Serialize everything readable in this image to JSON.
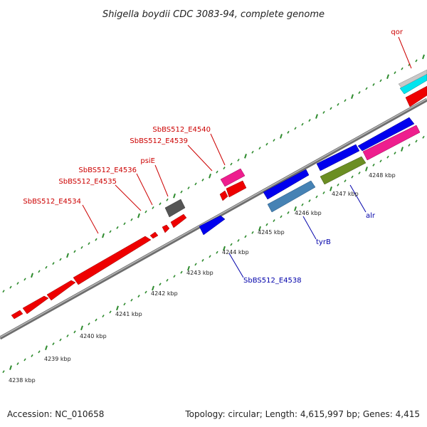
{
  "title": "Shigella boydii CDC 3083-94, complete genome",
  "footer": {
    "accession": "Accession: NC_010658",
    "summary": "Topology: circular; Length: 4,615,997 bp; Genes: 4,415"
  },
  "colors": {
    "backbone": "#808080",
    "tick": "#2e8b2e",
    "label_top": "#cc0000",
    "label_bottom": "#0000aa"
  },
  "scale_labels": [
    "4238 kbp",
    "4239 kbp",
    "4240 kbp",
    "4241 kbp",
    "4242 kbp",
    "4243 kbp",
    "4244 kbp",
    "4245 kbp",
    "4246 kbp",
    "4247 kbp",
    "4248 kbp"
  ],
  "gene_labels_top": [
    "qor",
    "SbBS512_E4540",
    "SbBS512_E4539",
    "psiE",
    "SbBS512_E4536",
    "SbBS512_E4535",
    "SbBS512_E4534"
  ],
  "gene_labels_bottom": [
    "alr",
    "tyrB",
    "SbBS512_E4538"
  ]
}
